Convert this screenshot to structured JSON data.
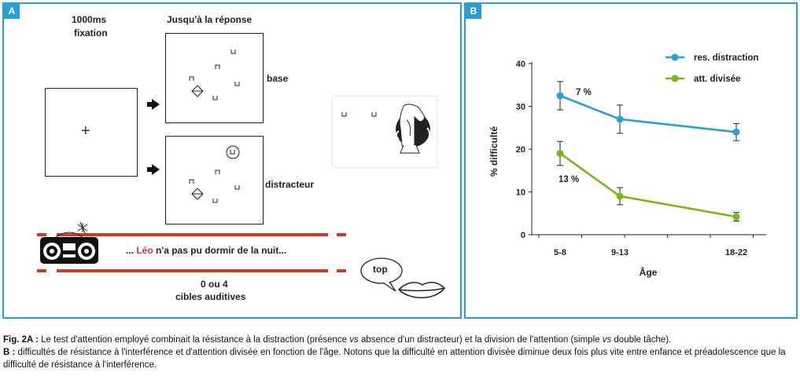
{
  "panel_a": {
    "tag": "A",
    "fixation_label_line1": "1000ms",
    "fixation_label_line2": "fixation",
    "response_label": "Jusqu'à la réponse",
    "base_label": "base",
    "distractor_label": "distracteur",
    "sentence_prefix": "... ",
    "sentence_name": "Léo",
    "sentence_rest": " n'a pas pu dormir de la nuit...",
    "auditory_line1": "0 ou 4",
    "auditory_line2": "cibles auditives",
    "speech_bubble": "top",
    "fixation_cross": "+",
    "colors": {
      "accent": "#2a9fd6",
      "red": "#cc3b2a"
    }
  },
  "panel_b": {
    "tag": "B"
  },
  "chart_data": {
    "type": "line",
    "categories": [
      "5-8",
      "9-13",
      "18-22"
    ],
    "xlabel": "Âge",
    "ylabel": "% difficulté",
    "ylim": [
      0,
      40
    ],
    "yticks": [
      0,
      10,
      20,
      30,
      40
    ],
    "legend_position": "top-right",
    "grid": false,
    "series": [
      {
        "name": "res. distraction",
        "color": "#2a9fd6",
        "values": [
          32.5,
          27,
          24
        ],
        "err": [
          3.3,
          3.3,
          2
        ]
      },
      {
        "name": "att. divisée",
        "color": "#7ab51d",
        "values": [
          19,
          9,
          4.2
        ],
        "err": [
          2.8,
          2,
          1
        ]
      }
    ],
    "annotations": [
      {
        "text": "7 %",
        "x": "5-8",
        "y": 33
      },
      {
        "text": "13 %",
        "x": "5-8",
        "y": 13
      }
    ]
  },
  "caption": {
    "a_label": "Fig. 2A :",
    "a_text_1": " Le test d'attention employé combinait la résistance à la distraction (présence ",
    "a_vs_1": "vs",
    "a_text_2": " absence d'un distracteur) et la division de l'attention (simple ",
    "a_vs_2": "vs",
    "a_text_3": " double tâche).",
    "b_label": "B :",
    "b_text": " difficultés de résistance à l'interférence et d'attention divisée en fonction de l'âge. Notons que la difficulté en attention divisée diminue deux fois plus vite entre enfance et préadolescence que la difficulté de résistance à l'interférence."
  }
}
